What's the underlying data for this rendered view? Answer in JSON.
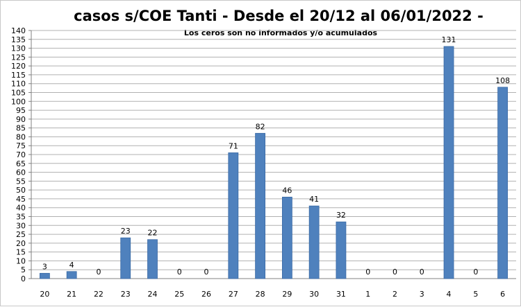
{
  "chart_data": {
    "type": "bar",
    "title": "casos s/COE Tanti - Desde el 20/12 al 06/01/2022 -",
    "subtitle": "Los ceros son no informados y/o acumulados",
    "xlabel": "",
    "ylabel": "",
    "categories": [
      "20",
      "21",
      "22",
      "23",
      "24",
      "25",
      "26",
      "27",
      "28",
      "29",
      "30",
      "31",
      "1",
      "2",
      "3",
      "4",
      "5",
      "6"
    ],
    "values": [
      3,
      4,
      0,
      23,
      22,
      0,
      0,
      71,
      82,
      46,
      41,
      32,
      0,
      0,
      0,
      131,
      0,
      108
    ],
    "ylim": [
      0,
      140
    ],
    "ytick_step": 5,
    "grid": true,
    "bar_color": "#4f81bd",
    "bar_edge_color": "#3a6aa5",
    "grid_color": "#b0b0b0"
  }
}
